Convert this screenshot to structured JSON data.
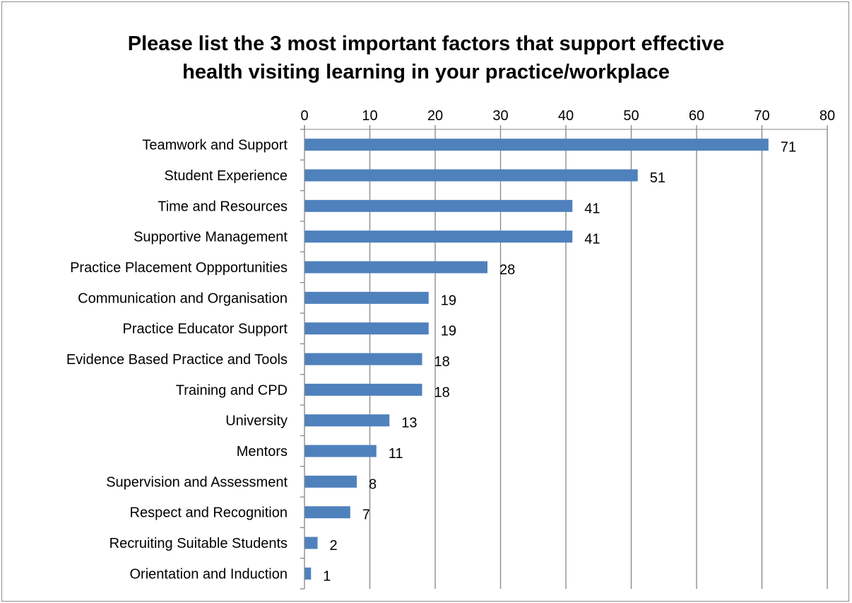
{
  "chart_data": {
    "type": "bar",
    "orientation": "horizontal",
    "title": "Please list the 3 most important factors that support effective health visiting learning in your practice/workplace",
    "title_lines": [
      "Please list the 3 most important factors that support effective",
      "health visiting learning in your practice/workplace"
    ],
    "categories": [
      "Teamwork and Support",
      "Student Experience",
      "Time and Resources",
      "Supportive Management",
      "Practice Placement Oppportunities",
      "Communication and Organisation",
      "Practice Educator Support",
      "Evidence Based Practice and Tools",
      "Training and CPD",
      "University",
      "Mentors",
      "Supervision and Assessment",
      "Respect and Recognition",
      "Recruiting Suitable Students",
      "Orientation and Induction"
    ],
    "values": [
      71,
      51,
      41,
      41,
      28,
      19,
      19,
      18,
      18,
      13,
      11,
      8,
      7,
      2,
      1
    ],
    "xlim": [
      0,
      80
    ],
    "xticks": [
      0,
      10,
      20,
      30,
      40,
      50,
      60,
      70,
      80
    ],
    "x_axis_position": "top",
    "grid": true,
    "legend": false,
    "data_labels": true,
    "bar_color": "#4f81bd",
    "grid_color": "#868686"
  }
}
